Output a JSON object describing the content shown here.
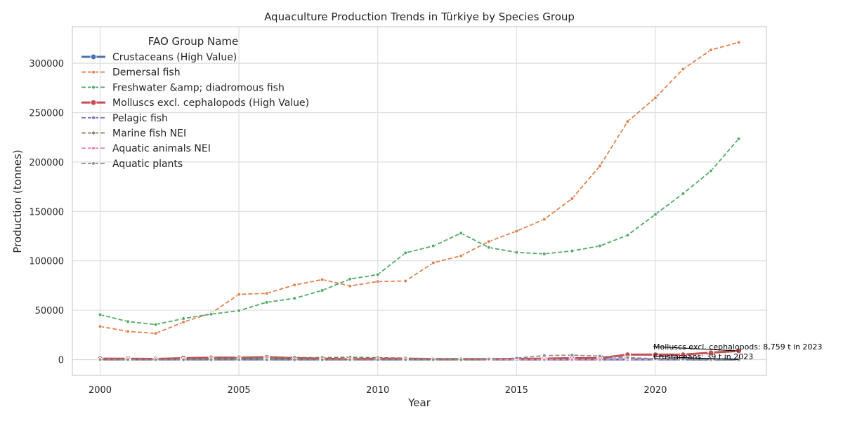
{
  "chart_data": {
    "type": "line",
    "title": "Aquaculture Production Trends in Türkiye by Species Group",
    "xlabel": "Year",
    "ylabel": "Production (tonnes)",
    "xlim": [
      1999,
      2024
    ],
    "ylim": [
      -16000,
      337000
    ],
    "xticks": [
      2000,
      2005,
      2010,
      2015,
      2020
    ],
    "yticks": [
      0,
      50000,
      100000,
      150000,
      200000,
      250000,
      300000
    ],
    "grid": true,
    "legend": {
      "title": "FAO Group Name",
      "placement": "upper-left"
    },
    "x": [
      2000,
      2001,
      2002,
      2003,
      2004,
      2005,
      2006,
      2007,
      2008,
      2009,
      2010,
      2011,
      2012,
      2013,
      2014,
      2015,
      2016,
      2017,
      2018,
      2019,
      2020,
      2021,
      2022,
      2023
    ],
    "series": [
      {
        "name": "Crustaceans (High Value)",
        "color": "#4c72b0",
        "style": "solid-marker",
        "values": [
          100,
          100,
          100,
          100,
          100,
          100,
          100,
          100,
          100,
          100,
          100,
          100,
          100,
          100,
          100,
          100,
          100,
          100,
          100,
          100,
          100,
          100,
          50,
          39
        ]
      },
      {
        "name": "Demersal fish",
        "color": "#dd8452",
        "style": "dashed",
        "values": [
          33500,
          28500,
          26500,
          38000,
          47000,
          66000,
          67000,
          75500,
          81000,
          74500,
          79000,
          79500,
          98000,
          105000,
          119500,
          130000,
          142000,
          163000,
          196000,
          241000,
          265000,
          294000,
          313500,
          321000
        ]
      },
      {
        "name": "Freshwater &amp; diadromous fish",
        "color": "#55a868",
        "style": "dashed",
        "values": [
          45500,
          38500,
          35500,
          41500,
          46000,
          49500,
          58000,
          62000,
          70000,
          81500,
          86000,
          108000,
          115000,
          128000,
          113500,
          108500,
          107000,
          110000,
          115000,
          126000,
          147000,
          168000,
          191000,
          223500
        ]
      },
      {
        "name": "Molluscs excl. cephalopods (High Value)",
        "color": "#c44e52",
        "style": "solid-marker",
        "values": [
          1000,
          800,
          700,
          1500,
          2000,
          2000,
          2500,
          1500,
          1000,
          300,
          1000,
          900,
          500,
          400,
          500,
          700,
          1000,
          1500,
          1500,
          5000,
          5000,
          5000,
          7000,
          8759
        ]
      },
      {
        "name": "Pelagic fish",
        "color": "#8172b3",
        "style": "dashed",
        "values": [
          0,
          0,
          0,
          0,
          0,
          0,
          0,
          0,
          0,
          0,
          0,
          0,
          0,
          0,
          0,
          0,
          0,
          0,
          0,
          0,
          0,
          0,
          0,
          0
        ]
      },
      {
        "name": "Marine fish NEI",
        "color": "#937860",
        "style": "dashed",
        "values": [
          300,
          300,
          300,
          500,
          1500,
          1800,
          2000,
          2200,
          2000,
          2300,
          2000,
          1500,
          1000,
          1000,
          800,
          600,
          500,
          300,
          300,
          200,
          200,
          100,
          100,
          50
        ]
      },
      {
        "name": "Aquatic animals NEI",
        "color": "#da8bc3",
        "style": "dashed",
        "values": [
          0,
          0,
          0,
          0,
          0,
          0,
          0,
          0,
          0,
          0,
          0,
          0,
          0,
          0,
          0,
          0,
          0,
          0,
          0,
          0,
          0,
          0,
          0,
          0
        ]
      },
      {
        "name": "Aquatic plants",
        "color": "#8c8c8c",
        "style": "dashed",
        "values": [
          0,
          0,
          0,
          0,
          0,
          0,
          0,
          0,
          0,
          0,
          0,
          0,
          0,
          0,
          500,
          1500,
          4000,
          4500,
          3500,
          2000,
          1000,
          500,
          200,
          100
        ]
      }
    ],
    "annotations": [
      {
        "text": "Molluscs excl. cephalopods: 8,759 t in 2023",
        "x": 2023,
        "y": 8759,
        "series": 3
      },
      {
        "text": "Crustaceans: 39 t in 2023",
        "x": 2023,
        "y": 39,
        "series": 0
      }
    ]
  }
}
